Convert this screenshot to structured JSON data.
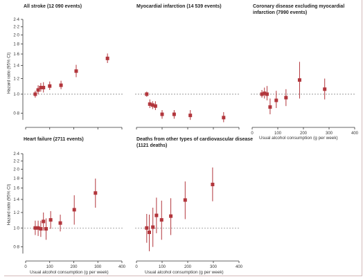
{
  "chart_data": [
    {
      "type": "scatter",
      "title": "All stroke (12 090 events)",
      "ylabel": "Hazard ratio (95% CI)",
      "xlabel": "",
      "xlim": [
        0,
        400
      ],
      "ylim": [
        0.7,
        2.4
      ],
      "yscale": "log",
      "xticks": [
        "0",
        "100",
        "200",
        "300",
        "400"
      ],
      "x_tick_labels_shown": false,
      "yticks": [
        "2·4",
        "2·2",
        "2·0",
        "1·8",
        "1·6",
        "1·4",
        "1·2",
        "1·0",
        "0·8"
      ],
      "reference_line": 1.0,
      "points": [
        {
          "x": 40,
          "y": 1.0,
          "lo": 0.96,
          "hi": 1.04
        },
        {
          "x": 52,
          "y": 1.05,
          "lo": 1.0,
          "hi": 1.11
        },
        {
          "x": 63,
          "y": 1.08,
          "lo": 1.03,
          "hi": 1.14
        },
        {
          "x": 74,
          "y": 1.08,
          "lo": 1.02,
          "hi": 1.15
        },
        {
          "x": 100,
          "y": 1.1,
          "lo": 1.05,
          "hi": 1.16
        },
        {
          "x": 147,
          "y": 1.11,
          "lo": 1.06,
          "hi": 1.17
        },
        {
          "x": 210,
          "y": 1.31,
          "lo": 1.22,
          "hi": 1.41
        },
        {
          "x": 340,
          "y": 1.52,
          "lo": 1.44,
          "hi": 1.61
        }
      ]
    },
    {
      "type": "scatter",
      "title": "Myocardial infarction (14 539 events)",
      "ylabel": "",
      "xlabel": "",
      "xlim": [
        0,
        400
      ],
      "ylim": [
        0.7,
        2.4
      ],
      "yscale": "log",
      "reference_line": 1.0,
      "points": [
        {
          "x": 40,
          "y": 1.0,
          "lo": 0.97,
          "hi": 1.03
        },
        {
          "x": 52,
          "y": 0.89,
          "lo": 0.85,
          "hi": 0.94
        },
        {
          "x": 63,
          "y": 0.88,
          "lo": 0.84,
          "hi": 0.92
        },
        {
          "x": 74,
          "y": 0.87,
          "lo": 0.83,
          "hi": 0.92
        },
        {
          "x": 100,
          "y": 0.79,
          "lo": 0.75,
          "hi": 0.83
        },
        {
          "x": 147,
          "y": 0.79,
          "lo": 0.75,
          "hi": 0.83
        },
        {
          "x": 210,
          "y": 0.78,
          "lo": 0.74,
          "hi": 0.83
        },
        {
          "x": 340,
          "y": 0.76,
          "lo": 0.72,
          "hi": 0.81
        }
      ]
    },
    {
      "type": "scatter",
      "title": "Coronary disease excluding myocardial infarction (7990 events)",
      "ylabel": "",
      "xlabel": "Usual alcohol consumption (g per week)",
      "xlim": [
        0,
        400
      ],
      "ylim": [
        0.7,
        2.4
      ],
      "yscale": "log",
      "xticks": [
        "0",
        "100",
        "200",
        "300",
        "400"
      ],
      "reference_line": 1.0,
      "points": [
        {
          "x": 38,
          "y": 1.0,
          "lo": 0.96,
          "hi": 1.05
        },
        {
          "x": 48,
          "y": 1.01,
          "lo": 0.95,
          "hi": 1.08
        },
        {
          "x": 58,
          "y": 1.0,
          "lo": 0.93,
          "hi": 1.1
        },
        {
          "x": 70,
          "y": 0.86,
          "lo": 0.79,
          "hi": 0.95
        },
        {
          "x": 94,
          "y": 0.93,
          "lo": 0.85,
          "hi": 1.04
        },
        {
          "x": 132,
          "y": 0.96,
          "lo": 0.87,
          "hi": 1.06
        },
        {
          "x": 185,
          "y": 1.18,
          "lo": 0.95,
          "hi": 1.46
        },
        {
          "x": 283,
          "y": 1.06,
          "lo": 0.94,
          "hi": 1.2
        }
      ]
    },
    {
      "type": "scatter",
      "title": "Heart failure (2711 events)",
      "ylabel": "Hazard ratio (95% CI)",
      "xlabel": "Usual alcohol consumption (g per week)",
      "xlim": [
        0,
        400
      ],
      "ylim": [
        0.7,
        2.4
      ],
      "yscale": "log",
      "xticks": [
        "0",
        "100",
        "200",
        "300",
        "400"
      ],
      "yticks": [
        "2·4",
        "2·2",
        "2·0",
        "1·8",
        "1·6",
        "1·4",
        "1·2",
        "1·0",
        "0·8"
      ],
      "reference_line": 1.0,
      "points": [
        {
          "x": 40,
          "y": 1.0,
          "lo": 0.92,
          "hi": 1.09
        },
        {
          "x": 52,
          "y": 1.0,
          "lo": 0.91,
          "hi": 1.09
        },
        {
          "x": 63,
          "y": 0.99,
          "lo": 0.9,
          "hi": 1.09
        },
        {
          "x": 74,
          "y": 1.08,
          "lo": 0.97,
          "hi": 1.2
        },
        {
          "x": 85,
          "y": 0.99,
          "lo": 0.87,
          "hi": 1.12
        },
        {
          "x": 104,
          "y": 1.1,
          "lo": 0.99,
          "hi": 1.22
        },
        {
          "x": 144,
          "y": 1.06,
          "lo": 0.96,
          "hi": 1.17
        },
        {
          "x": 202,
          "y": 1.24,
          "lo": 1.04,
          "hi": 1.47
        },
        {
          "x": 290,
          "y": 1.51,
          "lo": 1.27,
          "hi": 1.79
        }
      ]
    },
    {
      "type": "scatter",
      "title": "Deaths from other types of cardiovascular disease (1121 deaths)",
      "ylabel": "",
      "xlabel": "Usual alcohol consumption (g per week)",
      "xlim": [
        0,
        400
      ],
      "ylim": [
        0.7,
        2.4
      ],
      "yscale": "log",
      "xticks": [
        "0",
        "100",
        "200",
        "300",
        "400"
      ],
      "reference_line": 1.0,
      "points": [
        {
          "x": 40,
          "y": 1.0,
          "lo": 0.84,
          "hi": 1.18
        },
        {
          "x": 50,
          "y": 0.95,
          "lo": 0.76,
          "hi": 1.17
        },
        {
          "x": 64,
          "y": 1.01,
          "lo": 0.8,
          "hi": 1.27
        },
        {
          "x": 78,
          "y": 1.16,
          "lo": 0.94,
          "hi": 1.43
        },
        {
          "x": 98,
          "y": 1.1,
          "lo": 0.87,
          "hi": 1.38
        },
        {
          "x": 134,
          "y": 1.15,
          "lo": 0.92,
          "hi": 1.42
        },
        {
          "x": 190,
          "y": 1.39,
          "lo": 1.11,
          "hi": 1.73
        },
        {
          "x": 297,
          "y": 1.67,
          "lo": 1.37,
          "hi": 2.04
        }
      ]
    }
  ],
  "colors": {
    "marker": "#b2363c",
    "axis": "#333333",
    "reference": "#777777"
  }
}
